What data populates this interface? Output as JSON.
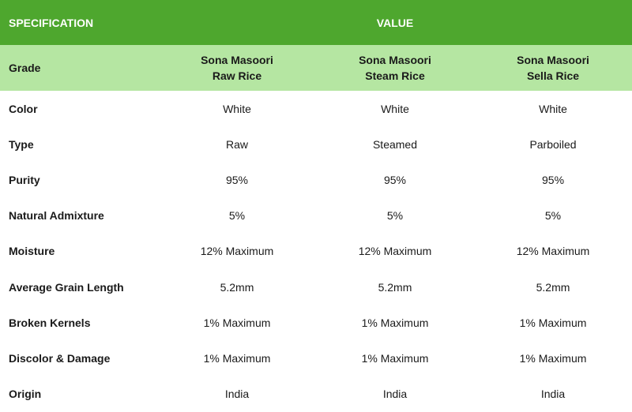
{
  "header": {
    "spec_label": "SPECIFICATION",
    "value_label": "VALUE"
  },
  "colors": {
    "header_bg": "#4ea72e",
    "grade_row_bg": "#b5e6a2",
    "header_text": "#ffffff"
  },
  "grade": {
    "label": "Grade",
    "columns": [
      {
        "line1": "Sona Masoori",
        "line2": "Raw Rice"
      },
      {
        "line1": "Sona Masoori",
        "line2": "Steam Rice"
      },
      {
        "line1": "Sona Masoori",
        "line2": "Sella Rice"
      }
    ]
  },
  "rows": [
    {
      "label": "Color",
      "values": [
        "White",
        "White",
        "White"
      ]
    },
    {
      "label": "Type",
      "values": [
        "Raw",
        "Steamed",
        "Parboiled"
      ]
    },
    {
      "label": "Purity",
      "values": [
        "95%",
        "95%",
        "95%"
      ]
    },
    {
      "label": "Natural Admixture",
      "values": [
        "5%",
        "5%",
        "5%"
      ]
    },
    {
      "label": "Moisture",
      "values": [
        "12% Maximum",
        "12% Maximum",
        "12% Maximum"
      ]
    },
    {
      "label": "Average Grain Length",
      "values": [
        "5.2mm",
        "5.2mm",
        "5.2mm"
      ]
    },
    {
      "label": "Broken Kernels",
      "values": [
        "1% Maximum",
        "1% Maximum",
        "1% Maximum"
      ]
    },
    {
      "label": "Discolor & Damage",
      "values": [
        "1% Maximum",
        "1% Maximum",
        "1% Maximum"
      ]
    },
    {
      "label": "Origin",
      "values": [
        "India",
        "India",
        "India"
      ]
    }
  ]
}
